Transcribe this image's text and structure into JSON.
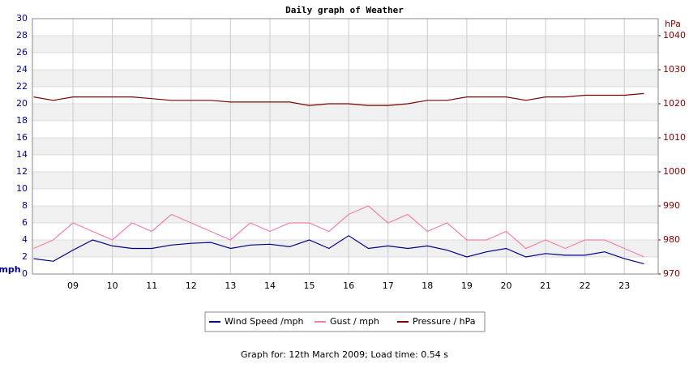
{
  "chart_data": {
    "type": "line",
    "title": "Daily graph of Weather",
    "ylabel": "mph",
    "y2label": "hPa",
    "footer": "Graph for: 12th March 2009; Load time: 0.54 s",
    "x": [
      8,
      8.5,
      9,
      9.5,
      10,
      10.5,
      11,
      11.5,
      12,
      12.5,
      13,
      13.5,
      14,
      14.5,
      15,
      15.5,
      16,
      16.5,
      17,
      17.5,
      18,
      18.5,
      19,
      19.5,
      20,
      20.5,
      21,
      21.5,
      22,
      22.5,
      23,
      23.5
    ],
    "series": [
      {
        "name": "Wind Speed /mph",
        "color": "#00008b",
        "values": [
          1.8,
          1.5,
          2.8,
          4.0,
          3.3,
          3.0,
          3.0,
          3.4,
          3.6,
          3.7,
          3.0,
          3.4,
          3.5,
          3.2,
          4.0,
          3.0,
          4.5,
          3.0,
          3.3,
          3.0,
          3.3,
          2.8,
          2.0,
          2.6,
          3.0,
          2.0,
          2.4,
          2.2,
          2.2,
          2.6,
          1.8,
          1.2
        ]
      },
      {
        "name": "Gust / mph",
        "color": "#f080b0",
        "values": [
          3,
          4,
          6,
          5,
          4,
          6,
          5,
          7,
          6,
          5,
          4,
          6,
          5,
          6,
          6,
          5,
          7,
          8,
          6,
          7,
          5,
          6,
          4,
          4,
          5,
          3,
          4,
          3,
          4,
          4,
          3,
          2
        ]
      },
      {
        "name": "Pressure / hPa",
        "color": "#800000",
        "axis": "y2",
        "values": [
          1022,
          1021,
          1022,
          1022,
          1022,
          1022,
          1021.5,
          1021,
          1021,
          1021,
          1020.5,
          1020.5,
          1020.5,
          1020.5,
          1019.5,
          1020,
          1020,
          1019.5,
          1019.5,
          1020,
          1021,
          1021,
          1022,
          1022,
          1022,
          1021,
          1022,
          1022,
          1022.5,
          1022.5,
          1022.5,
          1023
        ]
      }
    ],
    "xlim": [
      7.97,
      23.86
    ],
    "xticks": [
      {
        "value": 9,
        "label": "09"
      },
      10,
      11,
      12,
      13,
      14,
      15,
      16,
      17,
      18,
      19,
      20,
      21,
      22,
      23
    ],
    "ylim": [
      0,
      30
    ],
    "yticks": [
      0,
      2,
      4,
      6,
      8,
      10,
      12,
      14,
      16,
      18,
      20,
      22,
      24,
      26,
      28,
      30
    ],
    "y2lim": [
      970,
      1045
    ],
    "y2ticks": [
      970,
      980,
      990,
      1000,
      1010,
      1020,
      1030,
      1040
    ],
    "grid": true
  }
}
